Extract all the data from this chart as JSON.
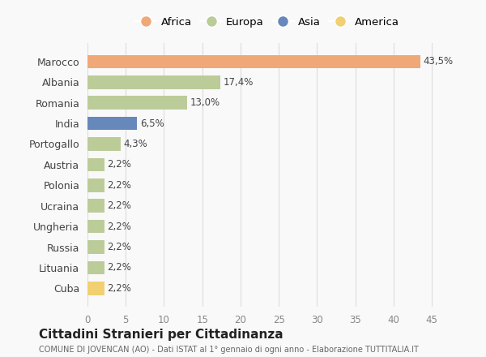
{
  "countries": [
    "Marocco",
    "Albania",
    "Romania",
    "India",
    "Portogallo",
    "Austria",
    "Polonia",
    "Ucraina",
    "Ungheria",
    "Russia",
    "Lituania",
    "Cuba"
  ],
  "values": [
    43.5,
    17.4,
    13.0,
    6.5,
    4.3,
    2.2,
    2.2,
    2.2,
    2.2,
    2.2,
    2.2,
    2.2
  ],
  "labels": [
    "43,5%",
    "17,4%",
    "13,0%",
    "6,5%",
    "4,3%",
    "2,2%",
    "2,2%",
    "2,2%",
    "2,2%",
    "2,2%",
    "2,2%",
    "2,2%"
  ],
  "colors": [
    "#F0A878",
    "#BBCC99",
    "#BBCC99",
    "#6688BB",
    "#BBCC99",
    "#BBCC99",
    "#BBCC99",
    "#BBCC99",
    "#BBCC99",
    "#BBCC99",
    "#BBCC99",
    "#F0D070"
  ],
  "legend_labels": [
    "Africa",
    "Europa",
    "Asia",
    "America"
  ],
  "legend_colors": [
    "#F0A878",
    "#BBCC99",
    "#6688BB",
    "#F0D070"
  ],
  "xlim": [
    0,
    47
  ],
  "xticks": [
    0,
    5,
    10,
    15,
    20,
    25,
    30,
    35,
    40,
    45
  ],
  "title1": "Cittadini Stranieri per Cittadinanza",
  "title2": "COMUNE DI JOVENCAN (AO) - Dati ISTAT al 1° gennaio di ogni anno - Elaborazione TUTTITALIA.IT",
  "background_color": "#f9f9f9",
  "bar_height": 0.65
}
